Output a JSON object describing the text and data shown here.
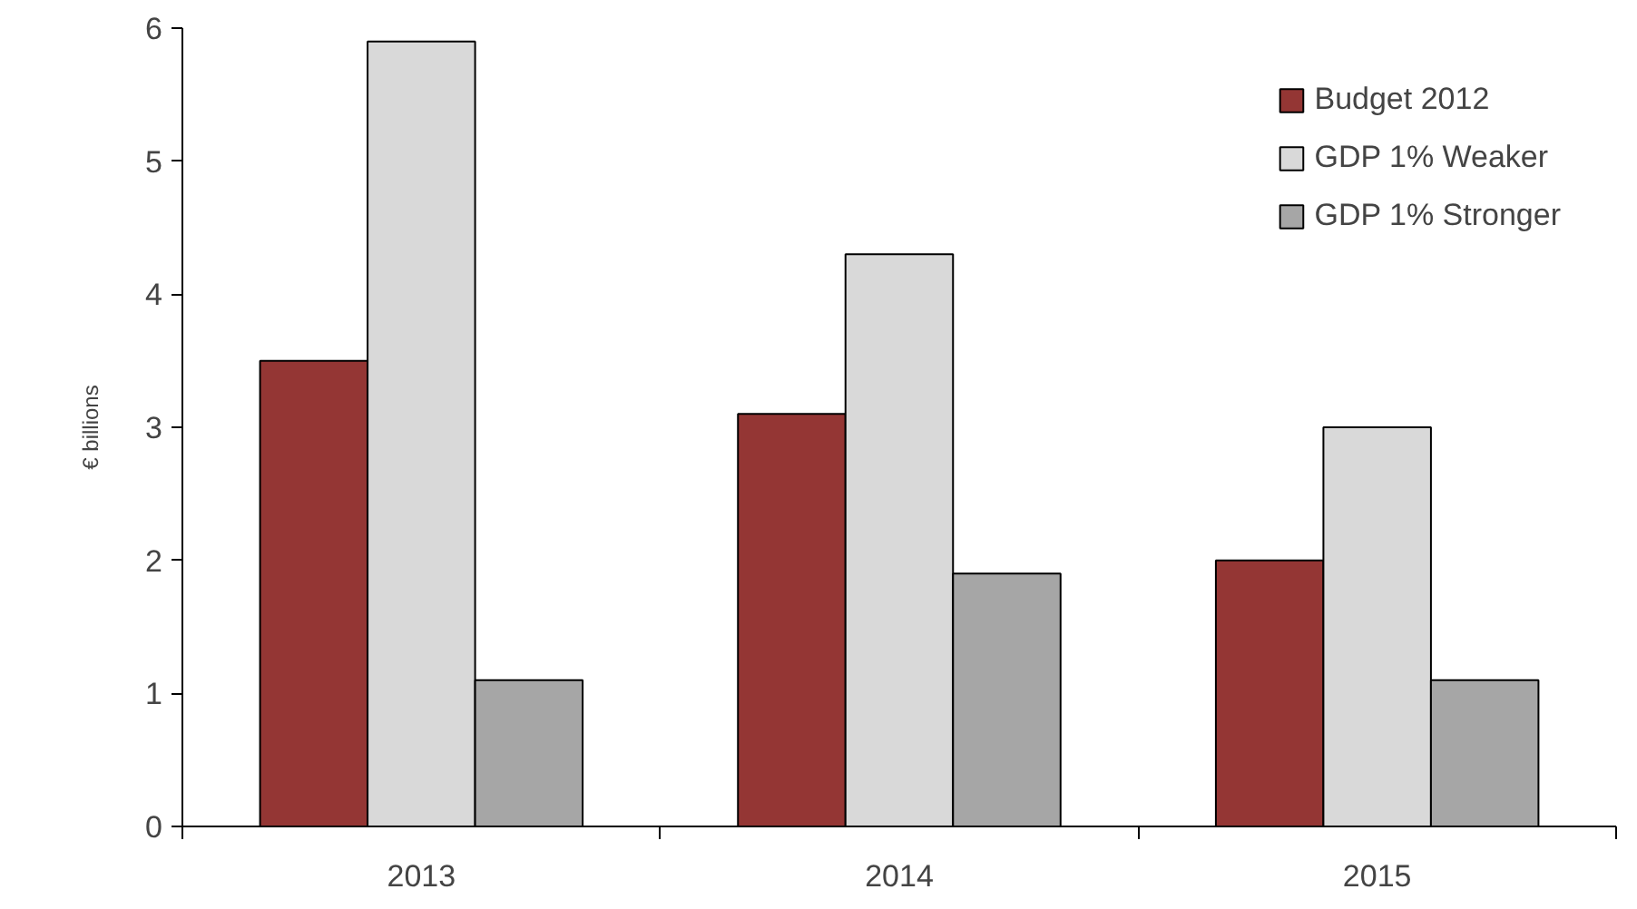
{
  "chart_data": {
    "type": "bar",
    "categories": [
      "2013",
      "2014",
      "2015"
    ],
    "ylabel": "€ billions",
    "ylim": [
      0,
      6
    ],
    "yticks": [
      0,
      1,
      2,
      3,
      4,
      5,
      6
    ],
    "grid": false,
    "legend": "top right",
    "series": [
      {
        "name": "Budget 2012",
        "color": "#943634",
        "values": [
          3.5,
          3.1,
          2.0
        ]
      },
      {
        "name": "GDP 1% Weaker",
        "color": "#d9d9d9",
        "values": [
          5.9,
          4.3,
          3.0
        ]
      },
      {
        "name": "GDP 1% Stronger",
        "color": "#a6a6a6",
        "values": [
          1.1,
          1.9,
          1.1
        ]
      }
    ]
  }
}
